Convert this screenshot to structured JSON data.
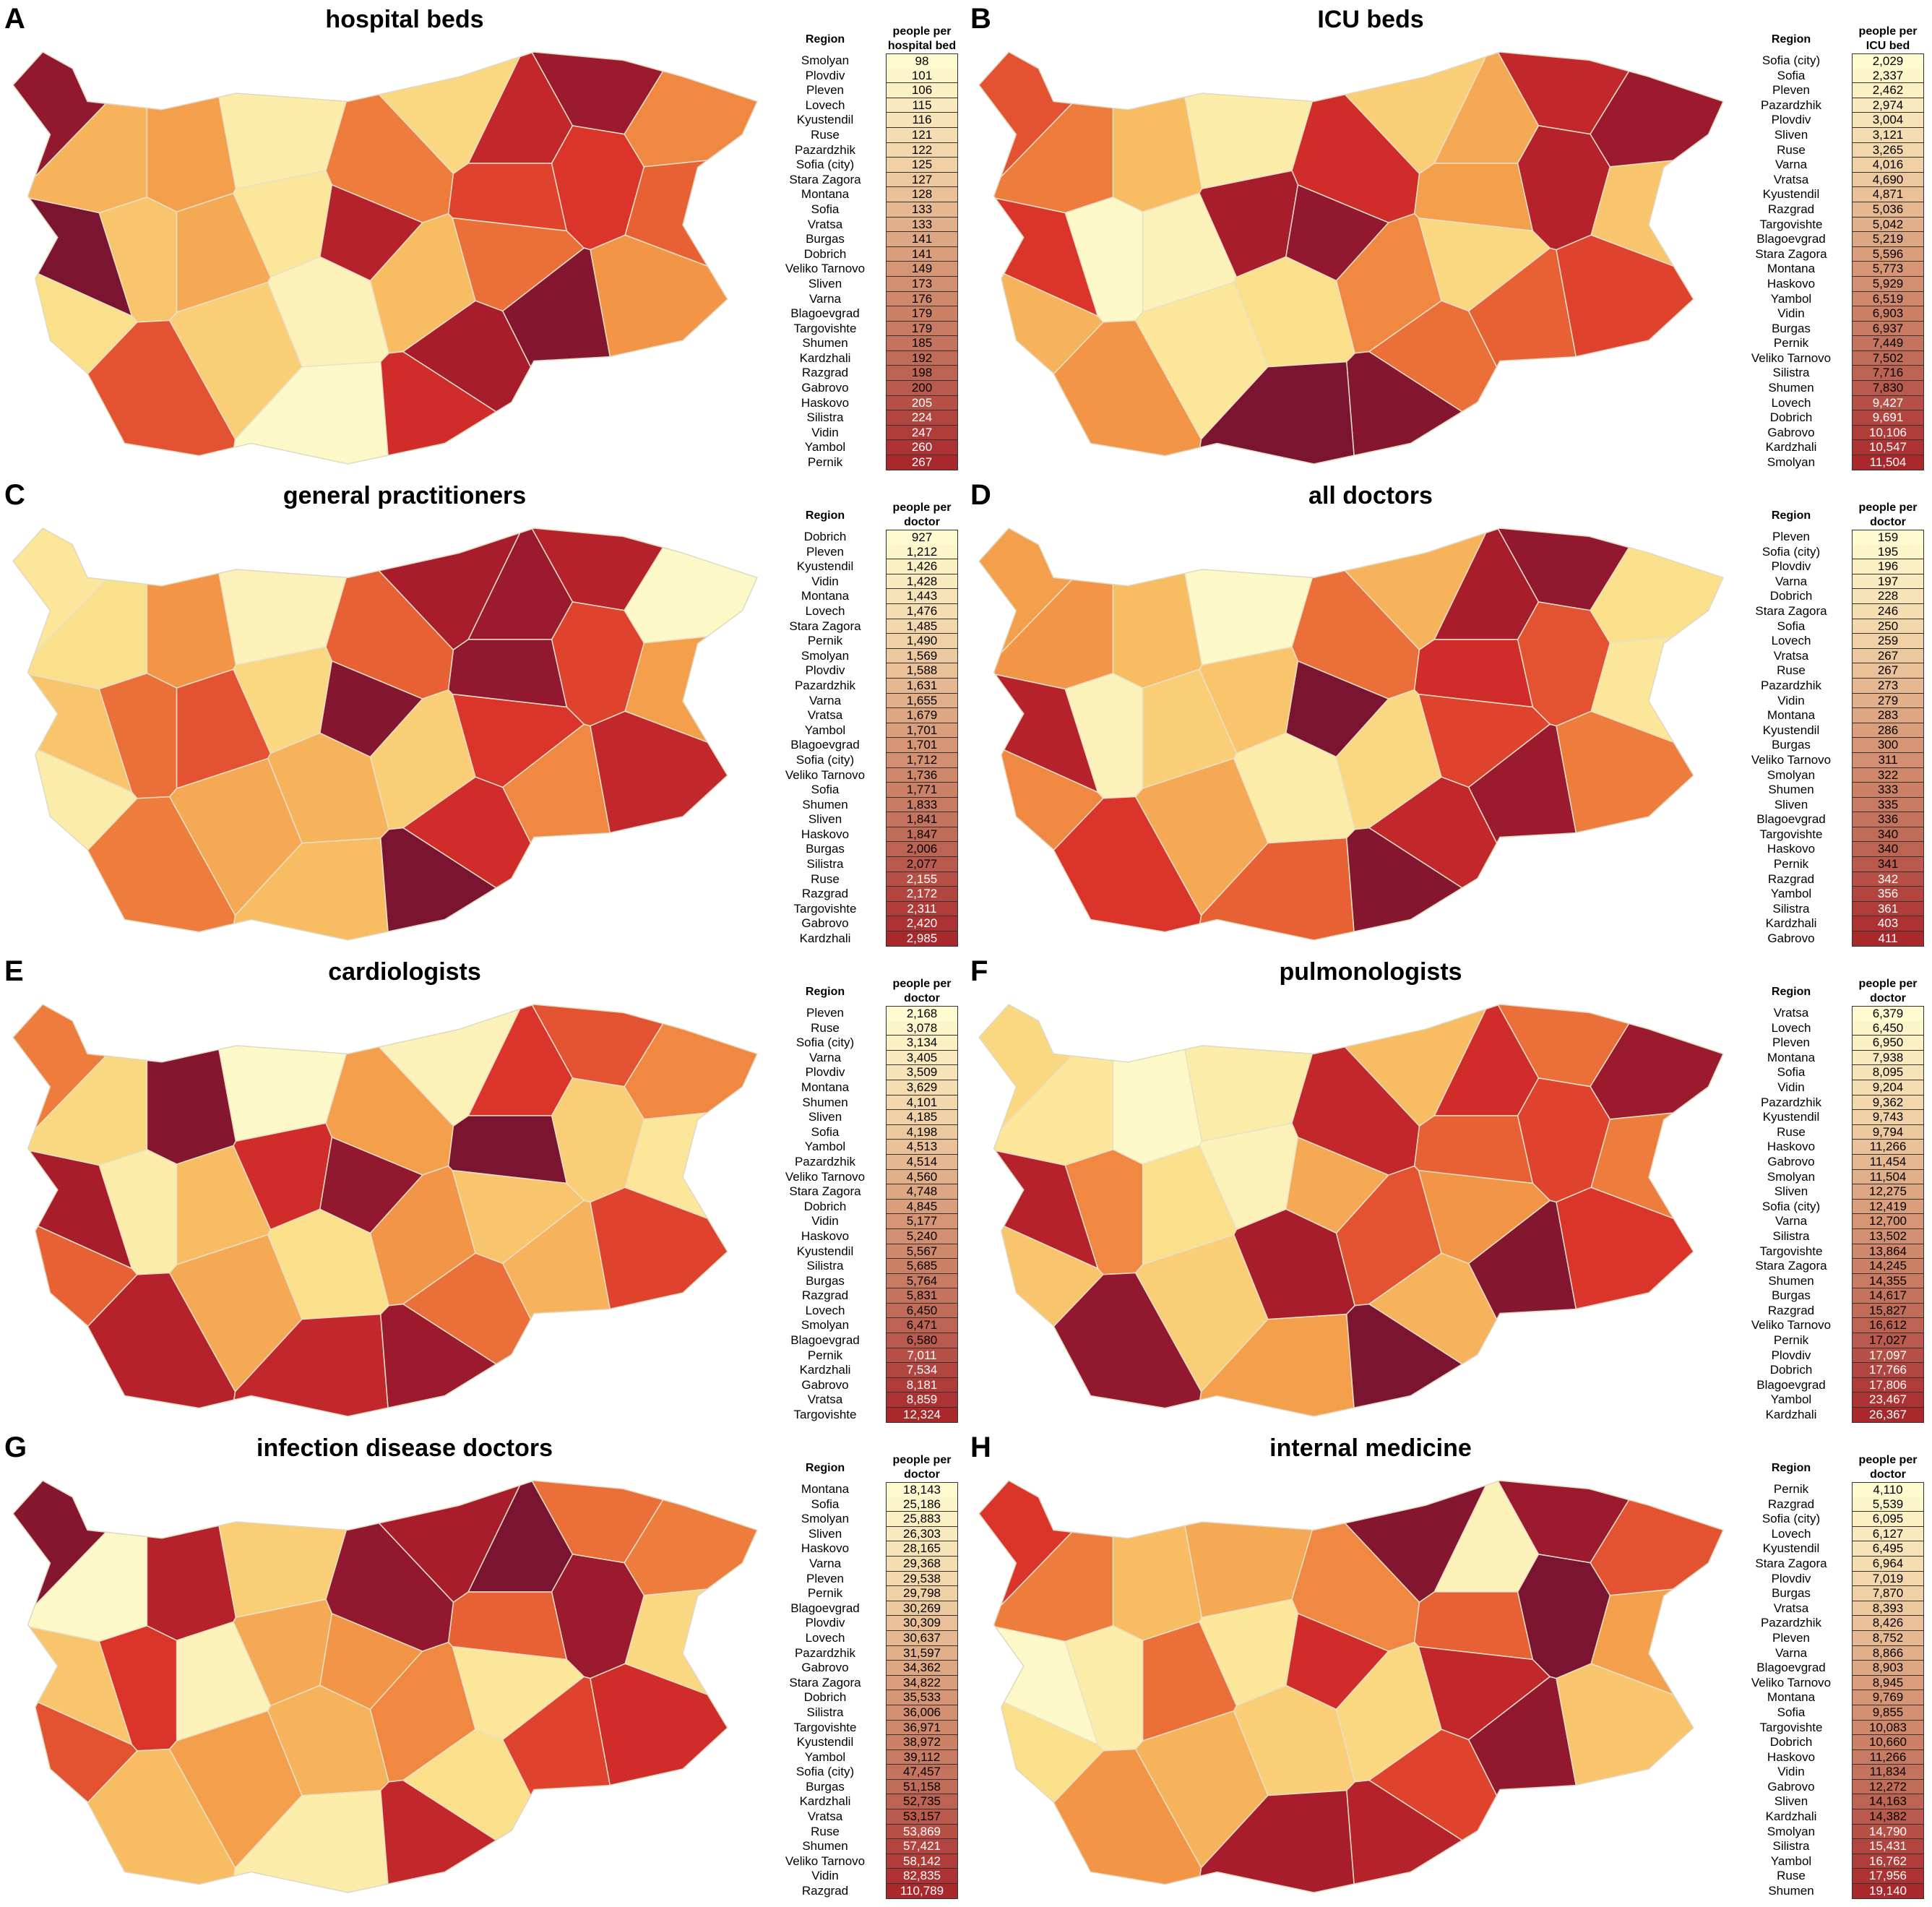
{
  "panels": [
    {
      "label": "A",
      "title": "hospital beds",
      "region_header": "Region",
      "value_header": "people per hospital bed",
      "rows": [
        [
          "Smolyan",
          "98"
        ],
        [
          "Plovdiv",
          "101"
        ],
        [
          "Pleven",
          "106"
        ],
        [
          "Lovech",
          "115"
        ],
        [
          "Kyustendil",
          "116"
        ],
        [
          "Ruse",
          "121"
        ],
        [
          "Pazardzhik",
          "122"
        ],
        [
          "Sofia (city)",
          "125"
        ],
        [
          "Stara Zagora",
          "127"
        ],
        [
          "Montana",
          "128"
        ],
        [
          "Sofia",
          "133"
        ],
        [
          "Vratsa",
          "133"
        ],
        [
          "Burgas",
          "141"
        ],
        [
          "Dobrich",
          "141"
        ],
        [
          "Veliko Tarnovo",
          "149"
        ],
        [
          "Sliven",
          "173"
        ],
        [
          "Varna",
          "176"
        ],
        [
          "Blagoevgrad",
          "179"
        ],
        [
          "Targovishte",
          "179"
        ],
        [
          "Shumen",
          "185"
        ],
        [
          "Kardzhali",
          "192"
        ],
        [
          "Razgrad",
          "198"
        ],
        [
          "Gabrovo",
          "200"
        ],
        [
          "Haskovo",
          "205"
        ],
        [
          "Silistra",
          "224"
        ],
        [
          "Vidin",
          "247"
        ],
        [
          "Yambol",
          "260"
        ],
        [
          "Pernik",
          "267"
        ]
      ]
    },
    {
      "label": "B",
      "title": "ICU beds",
      "region_header": "Region",
      "value_header": "people per ICU bed",
      "rows": [
        [
          "Sofia (city)",
          "2,029"
        ],
        [
          "Sofia",
          "2,337"
        ],
        [
          "Pleven",
          "2,462"
        ],
        [
          "Pazardzhik",
          "2,974"
        ],
        [
          "Plovdiv",
          "3,004"
        ],
        [
          "Sliven",
          "3,121"
        ],
        [
          "Ruse",
          "3,265"
        ],
        [
          "Varna",
          "4,016"
        ],
        [
          "Vratsa",
          "4,690"
        ],
        [
          "Kyustendil",
          "4,871"
        ],
        [
          "Razgrad",
          "5,036"
        ],
        [
          "Targovishte",
          "5,042"
        ],
        [
          "Blagoevgrad",
          "5,219"
        ],
        [
          "Stara Zagora",
          "5,596"
        ],
        [
          "Montana",
          "5,773"
        ],
        [
          "Haskovo",
          "5,929"
        ],
        [
          "Yambol",
          "6,519"
        ],
        [
          "Vidin",
          "6,903"
        ],
        [
          "Burgas",
          "6,937"
        ],
        [
          "Pernik",
          "7,449"
        ],
        [
          "Veliko Tarnovo",
          "7,502"
        ],
        [
          "Silistra",
          "7,716"
        ],
        [
          "Shumen",
          "7,830"
        ],
        [
          "Lovech",
          "9,427"
        ],
        [
          "Dobrich",
          "9,691"
        ],
        [
          "Gabrovo",
          "10,106"
        ],
        [
          "Kardzhali",
          "10,547"
        ],
        [
          "Smolyan",
          "11,504"
        ]
      ]
    },
    {
      "label": "C",
      "title": "general practitioners",
      "region_header": "Region",
      "value_header": "people per doctor",
      "rows": [
        [
          "Dobrich",
          "927"
        ],
        [
          "Pleven",
          "1,212"
        ],
        [
          "Kyustendil",
          "1,426"
        ],
        [
          "Vidin",
          "1,428"
        ],
        [
          "Montana",
          "1,443"
        ],
        [
          "Lovech",
          "1,476"
        ],
        [
          "Stara Zagora",
          "1,485"
        ],
        [
          "Pernik",
          "1,490"
        ],
        [
          "Smolyan",
          "1,569"
        ],
        [
          "Plovdiv",
          "1,588"
        ],
        [
          "Pazardzhik",
          "1,631"
        ],
        [
          "Varna",
          "1,655"
        ],
        [
          "Vratsa",
          "1,679"
        ],
        [
          "Yambol",
          "1,701"
        ],
        [
          "Blagoevgrad",
          "1,701"
        ],
        [
          "Sofia (city)",
          "1,712"
        ],
        [
          "Veliko Tarnovo",
          "1,736"
        ],
        [
          "Sofia",
          "1,771"
        ],
        [
          "Shumen",
          "1,833"
        ],
        [
          "Sliven",
          "1,841"
        ],
        [
          "Haskovo",
          "1,847"
        ],
        [
          "Burgas",
          "2,006"
        ],
        [
          "Silistra",
          "2,077"
        ],
        [
          "Ruse",
          "2,155"
        ],
        [
          "Razgrad",
          "2,172"
        ],
        [
          "Targovishte",
          "2,311"
        ],
        [
          "Gabrovo",
          "2,420"
        ],
        [
          "Kardzhali",
          "2,985"
        ]
      ]
    },
    {
      "label": "D",
      "title": "all doctors",
      "region_header": "Region",
      "value_header": "people per doctor",
      "rows": [
        [
          "Pleven",
          "159"
        ],
        [
          "Sofia (city)",
          "195"
        ],
        [
          "Plovdiv",
          "196"
        ],
        [
          "Varna",
          "197"
        ],
        [
          "Dobrich",
          "228"
        ],
        [
          "Stara Zagora",
          "246"
        ],
        [
          "Sofia",
          "250"
        ],
        [
          "Lovech",
          "259"
        ],
        [
          "Vratsa",
          "267"
        ],
        [
          "Ruse",
          "267"
        ],
        [
          "Pazardzhik",
          "273"
        ],
        [
          "Vidin",
          "279"
        ],
        [
          "Montana",
          "283"
        ],
        [
          "Kyustendil",
          "286"
        ],
        [
          "Burgas",
          "300"
        ],
        [
          "Veliko Tarnovo",
          "311"
        ],
        [
          "Smolyan",
          "322"
        ],
        [
          "Shumen",
          "333"
        ],
        [
          "Sliven",
          "335"
        ],
        [
          "Blagoevgrad",
          "336"
        ],
        [
          "Targovishte",
          "340"
        ],
        [
          "Haskovo",
          "340"
        ],
        [
          "Pernik",
          "341"
        ],
        [
          "Razgrad",
          "342"
        ],
        [
          "Yambol",
          "356"
        ],
        [
          "Silistra",
          "361"
        ],
        [
          "Kardzhali",
          "403"
        ],
        [
          "Gabrovo",
          "411"
        ]
      ]
    },
    {
      "label": "E",
      "title": "cardiologists",
      "region_header": "Region",
      "value_header": "people per doctor",
      "rows": [
        [
          "Pleven",
          "2,168"
        ],
        [
          "Ruse",
          "3,078"
        ],
        [
          "Sofia (city)",
          "3,134"
        ],
        [
          "Varna",
          "3,405"
        ],
        [
          "Plovdiv",
          "3,509"
        ],
        [
          "Montana",
          "3,629"
        ],
        [
          "Shumen",
          "4,101"
        ],
        [
          "Sliven",
          "4,185"
        ],
        [
          "Sofia",
          "4,198"
        ],
        [
          "Yambol",
          "4,513"
        ],
        [
          "Pazardzhik",
          "4,514"
        ],
        [
          "Veliko Tarnovo",
          "4,560"
        ],
        [
          "Stara Zagora",
          "4,748"
        ],
        [
          "Dobrich",
          "4,845"
        ],
        [
          "Vidin",
          "5,177"
        ],
        [
          "Haskovo",
          "5,240"
        ],
        [
          "Kyustendil",
          "5,567"
        ],
        [
          "Silistra",
          "5,685"
        ],
        [
          "Burgas",
          "5,764"
        ],
        [
          "Razgrad",
          "5,831"
        ],
        [
          "Lovech",
          "6,450"
        ],
        [
          "Smolyan",
          "6,471"
        ],
        [
          "Blagoevgrad",
          "6,580"
        ],
        [
          "Pernik",
          "7,011"
        ],
        [
          "Kardzhali",
          "7,534"
        ],
        [
          "Gabrovo",
          "8,181"
        ],
        [
          "Vratsa",
          "8,859"
        ],
        [
          "Targovishte",
          "12,324"
        ]
      ]
    },
    {
      "label": "F",
      "title": "pulmonologists",
      "region_header": "Region",
      "value_header": "people per doctor",
      "rows": [
        [
          "Vratsa",
          "6,379"
        ],
        [
          "Lovech",
          "6,450"
        ],
        [
          "Pleven",
          "6,950"
        ],
        [
          "Montana",
          "7,938"
        ],
        [
          "Sofia",
          "8,095"
        ],
        [
          "Vidin",
          "9,204"
        ],
        [
          "Pazardzhik",
          "9,362"
        ],
        [
          "Kyustendil",
          "9,743"
        ],
        [
          "Ruse",
          "9,794"
        ],
        [
          "Haskovo",
          "11,266"
        ],
        [
          "Gabrovo",
          "11,454"
        ],
        [
          "Smolyan",
          "11,504"
        ],
        [
          "Sliven",
          "12,275"
        ],
        [
          "Sofia (city)",
          "12,419"
        ],
        [
          "Varna",
          "12,700"
        ],
        [
          "Silistra",
          "13,502"
        ],
        [
          "Targovishte",
          "13,864"
        ],
        [
          "Stara Zagora",
          "14,245"
        ],
        [
          "Shumen",
          "14,355"
        ],
        [
          "Burgas",
          "14,617"
        ],
        [
          "Razgrad",
          "15,827"
        ],
        [
          "Veliko Tarnovo",
          "16,612"
        ],
        [
          "Pernik",
          "17,027"
        ],
        [
          "Plovdiv",
          "17,097"
        ],
        [
          "Dobrich",
          "17,766"
        ],
        [
          "Blagoevgrad",
          "17,806"
        ],
        [
          "Yambol",
          "23,467"
        ],
        [
          "Kardzhali",
          "26,367"
        ]
      ]
    },
    {
      "label": "G",
      "title": "infection disease doctors",
      "region_header": "Region",
      "value_header": "people per doctor",
      "rows": [
        [
          "Montana",
          "18,143"
        ],
        [
          "Sofia",
          "25,186"
        ],
        [
          "Smolyan",
          "25,883"
        ],
        [
          "Sliven",
          "26,303"
        ],
        [
          "Haskovo",
          "28,165"
        ],
        [
          "Varna",
          "29,368"
        ],
        [
          "Pleven",
          "29,538"
        ],
        [
          "Pernik",
          "29,798"
        ],
        [
          "Blagoevgrad",
          "30,269"
        ],
        [
          "Plovdiv",
          "30,309"
        ],
        [
          "Lovech",
          "30,637"
        ],
        [
          "Pazardzhik",
          "31,597"
        ],
        [
          "Gabrovo",
          "34,362"
        ],
        [
          "Stara Zagora",
          "34,822"
        ],
        [
          "Dobrich",
          "35,533"
        ],
        [
          "Silistra",
          "36,006"
        ],
        [
          "Targovishte",
          "36,971"
        ],
        [
          "Kyustendil",
          "38,972"
        ],
        [
          "Yambol",
          "39,112"
        ],
        [
          "Sofia (city)",
          "47,457"
        ],
        [
          "Burgas",
          "51,158"
        ],
        [
          "Kardzhali",
          "52,735"
        ],
        [
          "Vratsa",
          "53,157"
        ],
        [
          "Ruse",
          "53,869"
        ],
        [
          "Shumen",
          "57,421"
        ],
        [
          "Veliko Tarnovo",
          "58,142"
        ],
        [
          "Vidin",
          "82,835"
        ],
        [
          "Razgrad",
          "110,789"
        ]
      ]
    },
    {
      "label": "H",
      "title": "internal medicine",
      "region_header": "Region",
      "value_header": "people per doctor",
      "rows": [
        [
          "Pernik",
          "4,110"
        ],
        [
          "Razgrad",
          "5,539"
        ],
        [
          "Sofia (city)",
          "6,095"
        ],
        [
          "Lovech",
          "6,127"
        ],
        [
          "Kyustendil",
          "6,495"
        ],
        [
          "Stara Zagora",
          "6,964"
        ],
        [
          "Plovdiv",
          "7,019"
        ],
        [
          "Burgas",
          "7,870"
        ],
        [
          "Vratsa",
          "8,393"
        ],
        [
          "Pazardzhik",
          "8,426"
        ],
        [
          "Pleven",
          "8,752"
        ],
        [
          "Varna",
          "8,866"
        ],
        [
          "Blagoevgrad",
          "8,903"
        ],
        [
          "Veliko Tarnovo",
          "8,945"
        ],
        [
          "Montana",
          "9,769"
        ],
        [
          "Sofia",
          "9,855"
        ],
        [
          "Targovishte",
          "10,083"
        ],
        [
          "Dobrich",
          "10,660"
        ],
        [
          "Haskovo",
          "11,266"
        ],
        [
          "Vidin",
          "11,834"
        ],
        [
          "Gabrovo",
          "12,272"
        ],
        [
          "Sliven",
          "14,163"
        ],
        [
          "Kardzhali",
          "14,382"
        ],
        [
          "Smolyan",
          "14,790"
        ],
        [
          "Silistra",
          "15,431"
        ],
        [
          "Yambol",
          "16,762"
        ],
        [
          "Ruse",
          "17,956"
        ],
        [
          "Shumen",
          "19,140"
        ]
      ]
    }
  ]
}
